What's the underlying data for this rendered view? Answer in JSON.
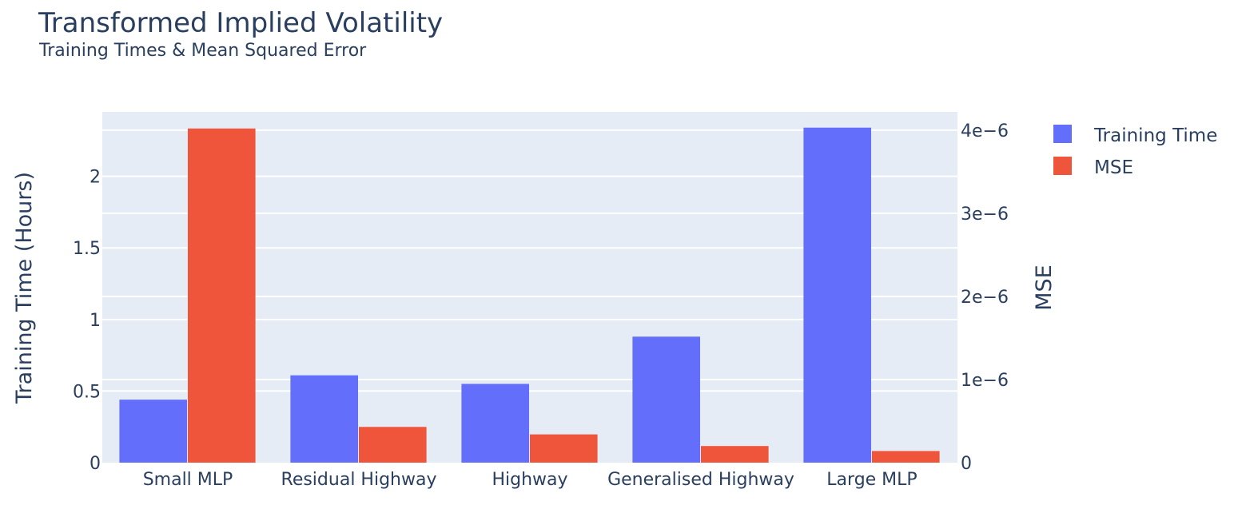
{
  "chart_data": {
    "type": "bar",
    "title": "Transformed Implied Volatility",
    "subtitle": "Training Times & Mean Squared Error",
    "categories": [
      "Small MLP",
      "Residual Highway",
      "Highway",
      "Generalised Highway",
      "Large MLP"
    ],
    "series": [
      {
        "name": "Training Time",
        "axis": "left",
        "color": "#636efa",
        "values": [
          0.44,
          0.61,
          0.55,
          0.88,
          2.34
        ]
      },
      {
        "name": "MSE",
        "axis": "right",
        "color": "#ef553b",
        "values": [
          4.02e-06,
          4.3e-07,
          3.4e-07,
          2e-07,
          1.4e-07
        ]
      }
    ],
    "yaxis_left": {
      "label": "Training Time (Hours)",
      "range": [
        0,
        2.45
      ],
      "ticks": [
        0,
        0.5,
        1,
        1.5,
        2
      ],
      "tick_labels": [
        "0",
        "0.5",
        "1",
        "1.5",
        "2"
      ]
    },
    "yaxis_right": {
      "label": "MSE",
      "range": [
        0,
        4.22e-06
      ],
      "ticks": [
        0,
        1e-06,
        2e-06,
        3e-06,
        4e-06
      ],
      "tick_labels": [
        "0",
        "1e−6",
        "2e−6",
        "3e−6",
        "4e−6"
      ]
    },
    "legend": {
      "position": "top-right",
      "entries": [
        "Training Time",
        "MSE"
      ]
    },
    "plot_background": "#e5ecf6",
    "grid_color": "#ffffff"
  }
}
